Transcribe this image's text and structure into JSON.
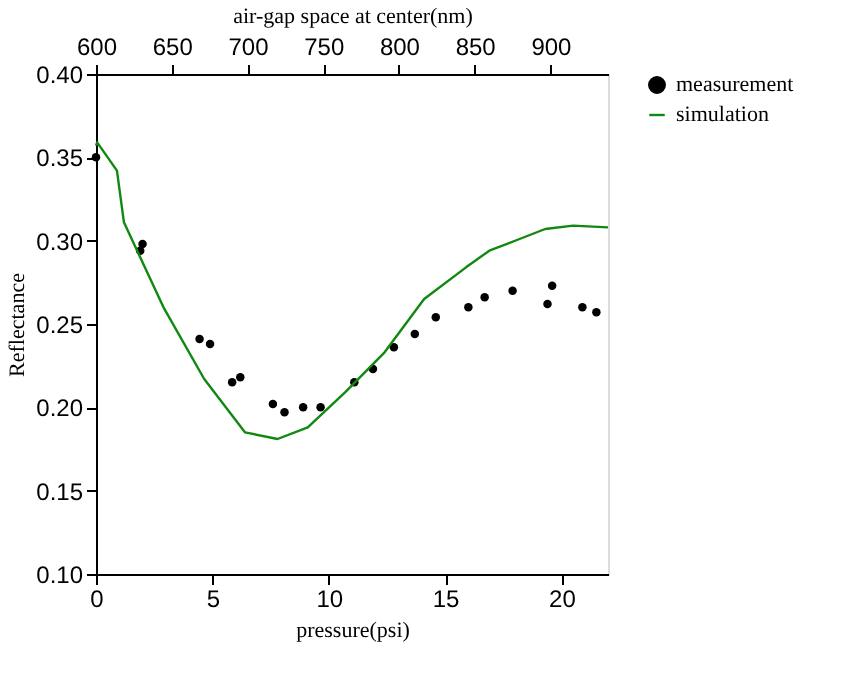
{
  "chart_data": {
    "type": "scatter",
    "xlabel": "pressure(psi)",
    "ylabel": "Reflectance",
    "x2label": "air-gap space at center(nm)",
    "xlim": [
      0,
      22
    ],
    "xticks": [
      0,
      5,
      10,
      15,
      20
    ],
    "ylim": [
      0.1,
      0.4
    ],
    "yticks": [
      {
        "value": 0.1,
        "label": "0.10"
      },
      0.15,
      {
        "value": 0.2,
        "label": "0.20"
      },
      0.25,
      {
        "value": 0.3,
        "label": "0.30"
      },
      0.35,
      {
        "value": 0.4,
        "label": "0.40"
      }
    ],
    "x2lim": [
      600,
      938
    ],
    "x2ticks": [
      600,
      650,
      700,
      750,
      800,
      850,
      900
    ],
    "grid": false,
    "legend": "right",
    "series": [
      {
        "name": "measurement",
        "marker": "circle",
        "color": "#000000",
        "x": [
          0,
          1.9,
          2.0,
          4.45,
          4.9,
          5.85,
          6.2,
          7.6,
          8.1,
          8.9,
          9.65,
          11.1,
          11.9,
          12.8,
          13.7,
          14.6,
          16.0,
          16.7,
          17.9,
          19.4,
          19.6,
          20.9,
          21.5
        ],
        "values": [
          0.35,
          0.294,
          0.298,
          0.241,
          0.238,
          0.215,
          0.218,
          0.202,
          0.197,
          0.2,
          0.2,
          0.215,
          0.223,
          0.236,
          0.244,
          0.254,
          0.26,
          0.266,
          0.27,
          0.262,
          0.273,
          0.26,
          0.257
        ]
      },
      {
        "name": "simulation",
        "type": "line",
        "marker": "none",
        "line_style": "solid",
        "color": "#118811",
        "x": [
          0,
          0.05,
          0.9,
          1.2,
          2.9,
          4.65,
          6.4,
          7.8,
          9.1,
          10.7,
          12.4,
          14.1,
          15.9,
          16.9,
          18.2,
          19.3,
          20.5,
          22
        ],
        "values": [
          0.357,
          0.359,
          0.342,
          0.311,
          0.26,
          0.217,
          0.185,
          0.181,
          0.188,
          0.209,
          0.233,
          0.265,
          0.284,
          0.294,
          0.301,
          0.307,
          0.309,
          0.308
        ]
      }
    ]
  }
}
